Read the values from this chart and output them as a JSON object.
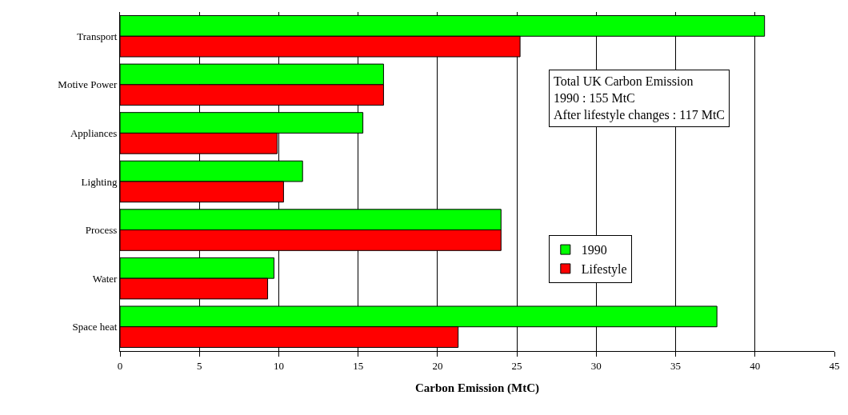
{
  "chart_data": {
    "type": "bar",
    "orientation": "horizontal",
    "xlabel": "Carbon Emission (MtC)",
    "categories": [
      "Transport",
      "Motive Power",
      "Appliances",
      "Lighting",
      "Process",
      "Water",
      "Space heat"
    ],
    "series": [
      {
        "name": "1990",
        "color": "#00ff00",
        "values": [
          40.6,
          16.6,
          15.3,
          11.5,
          24.0,
          9.7,
          37.6
        ]
      },
      {
        "name": "Lifestyle",
        "color": "#ff0000",
        "values": [
          25.2,
          16.6,
          9.9,
          10.3,
          24.0,
          9.3,
          21.3
        ]
      }
    ],
    "xlim": [
      0,
      45
    ],
    "xticks": [
      0,
      5,
      10,
      15,
      20,
      25,
      30,
      35,
      40,
      45
    ],
    "grid": "x",
    "legend": "right",
    "annotations": [
      "Total UK Carbon Emission\n1990 : 155 MtC\nAfter lifestyle changes : 117 MtC"
    ]
  }
}
